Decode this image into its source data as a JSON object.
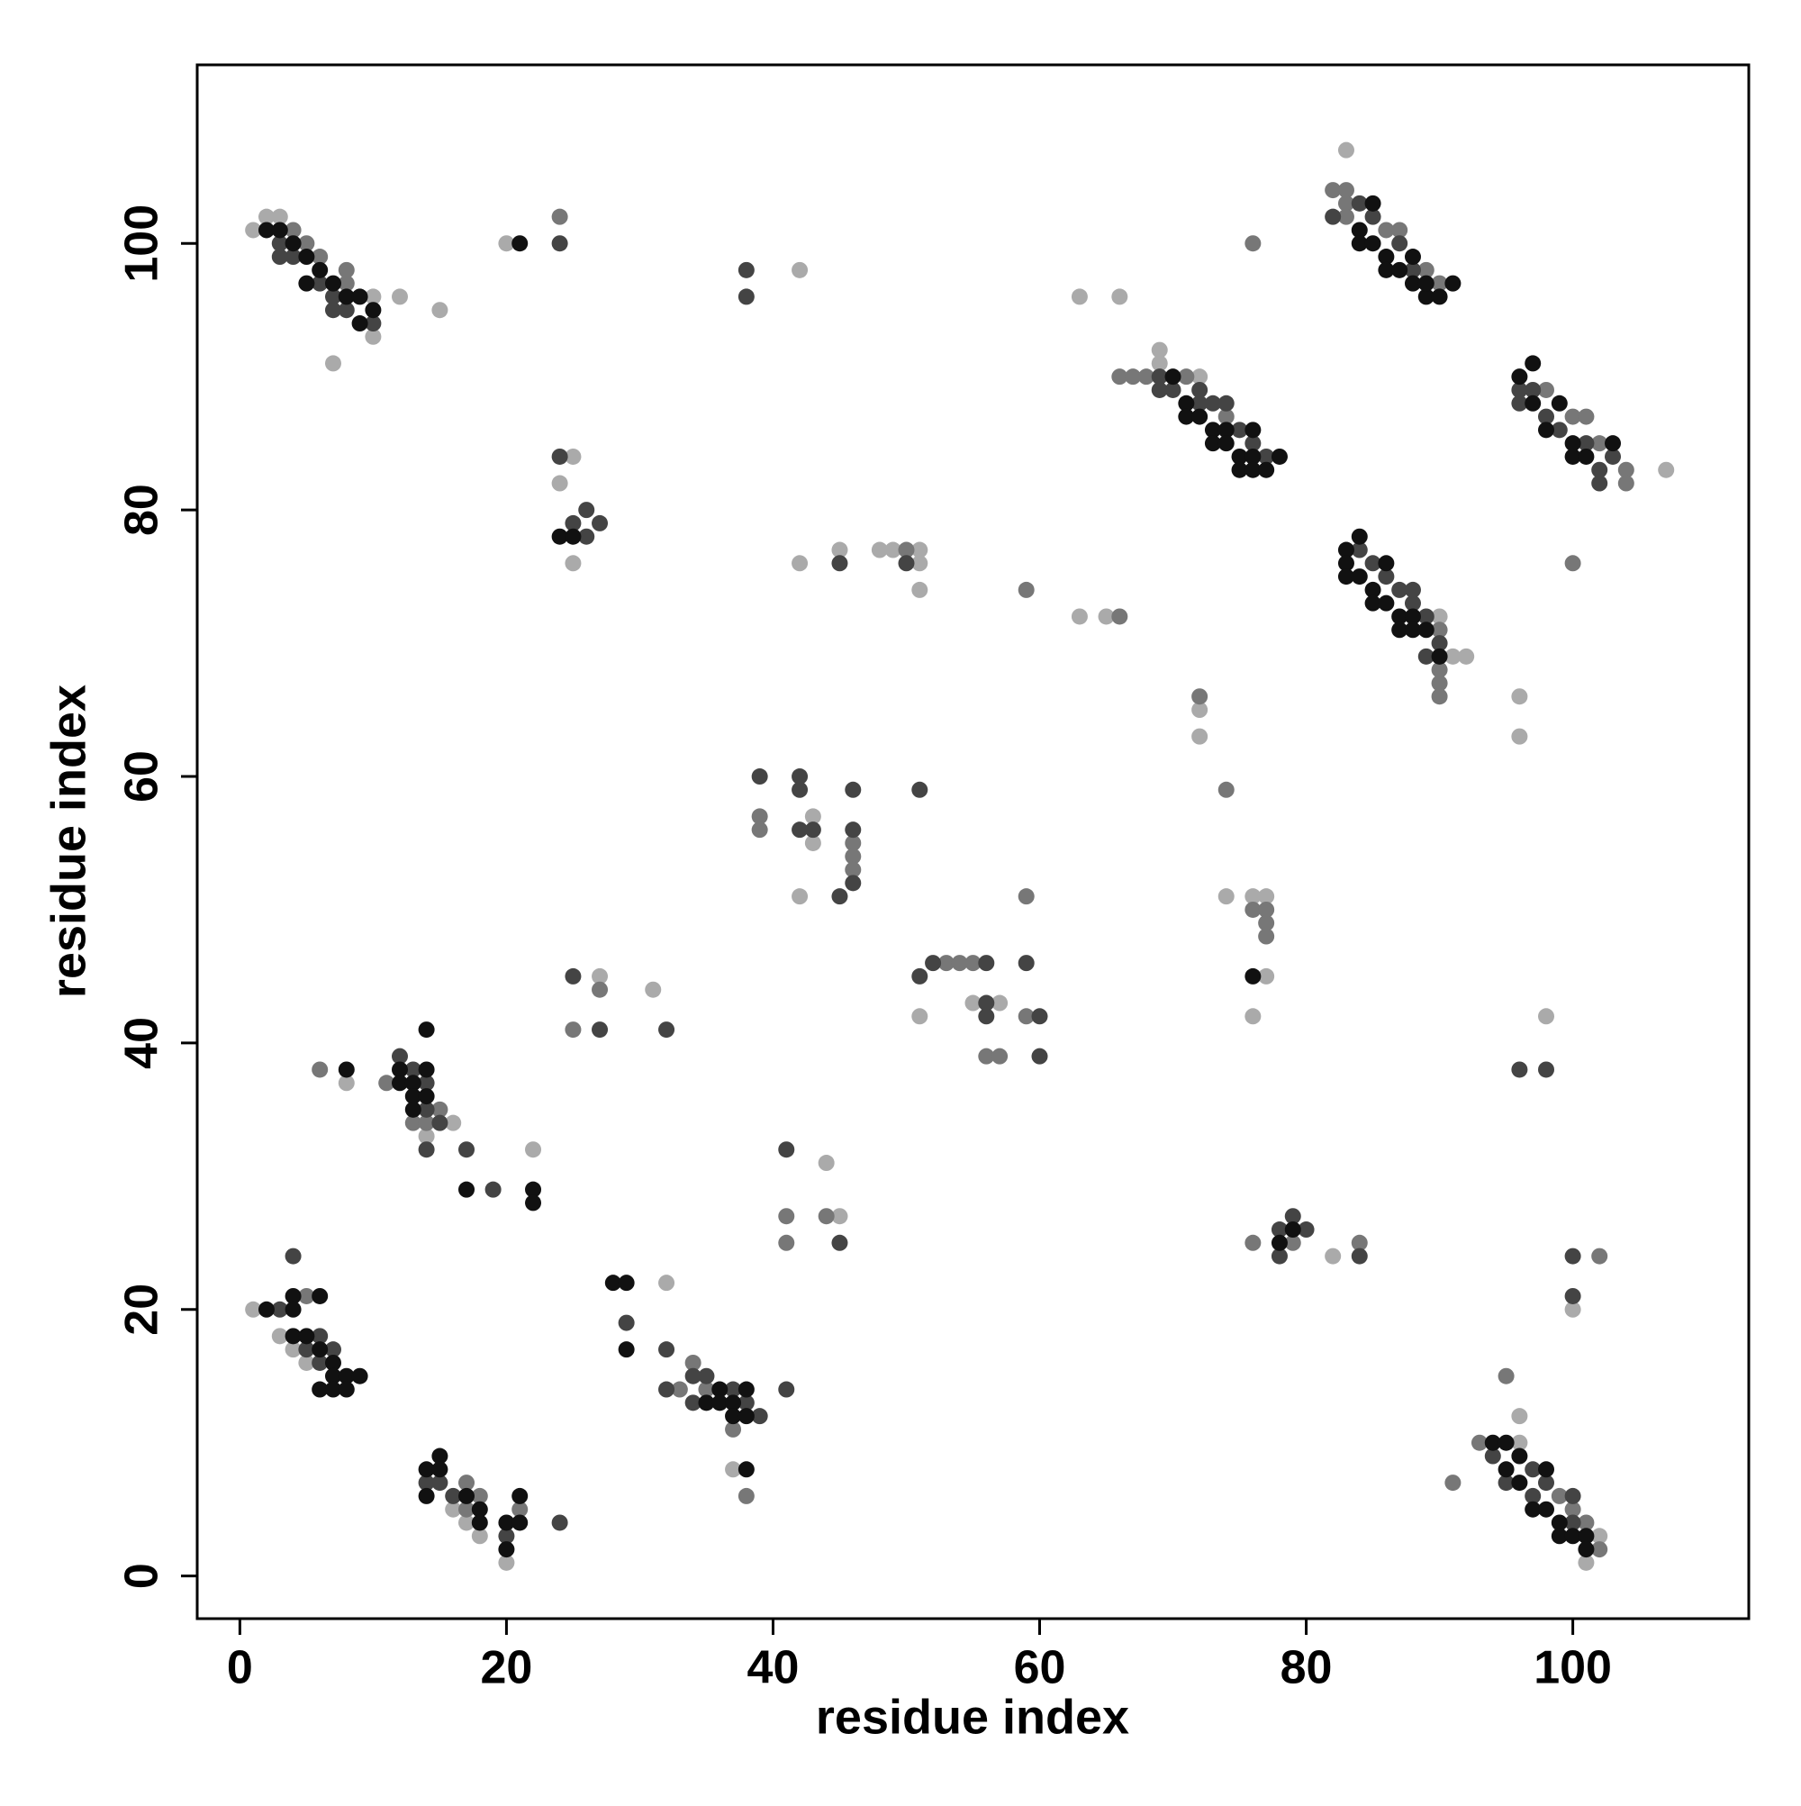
{
  "chart_data": {
    "type": "scatter",
    "xlabel": "residue index",
    "ylabel": "residue index",
    "xlim": [
      -3.2,
      113.2
    ],
    "ylim": [
      -3.2,
      113.4
    ],
    "xticks": [
      0,
      20,
      40,
      60,
      80,
      100
    ],
    "yticks": [
      0,
      20,
      40,
      60,
      80,
      100
    ],
    "series": [
      {
        "color": "#aaaaaa",
        "x": [
          1,
          2,
          3,
          10,
          12,
          15,
          7,
          10,
          20,
          42,
          63,
          66,
          25,
          24,
          25,
          42,
          45,
          48,
          49,
          51,
          51,
          51,
          63,
          65,
          69,
          69,
          72,
          83,
          107,
          90,
          91,
          92,
          72,
          72,
          96,
          96,
          43,
          43,
          42,
          74,
          76,
          77,
          77,
          76,
          55,
          57,
          51,
          27,
          31,
          98,
          8,
          14,
          16,
          22,
          44,
          45,
          82,
          100,
          1,
          3,
          4,
          5,
          32,
          37,
          16,
          17,
          18,
          20,
          96,
          96,
          101,
          102
        ],
        "values": [
          101,
          102,
          102,
          96,
          96,
          95,
          91,
          93,
          100,
          98,
          96,
          96,
          84,
          82,
          76,
          76,
          77,
          77,
          77,
          77,
          76,
          74,
          72,
          72,
          92,
          91,
          90,
          107,
          83,
          72,
          69,
          69,
          65,
          63,
          66,
          63,
          57,
          55,
          51,
          51,
          51,
          51,
          45,
          42,
          43,
          43,
          42,
          45,
          44,
          42,
          37,
          33,
          34,
          32,
          31,
          27,
          24,
          20,
          20,
          18,
          17,
          16,
          22,
          8,
          5,
          4,
          3,
          1,
          12,
          10,
          1,
          3
        ]
      },
      {
        "color": "#777777",
        "x": [
          4,
          5,
          6,
          8,
          8,
          24,
          76,
          50,
          59,
          66,
          66,
          67,
          68,
          71,
          74,
          82,
          83,
          83,
          83,
          86,
          87,
          89,
          90,
          98,
          100,
          101,
          102,
          104,
          104,
          100,
          90,
          90,
          90,
          90,
          72,
          74,
          39,
          39,
          46,
          46,
          46,
          76,
          77,
          77,
          77,
          59,
          53,
          54,
          55,
          59,
          56,
          57,
          27,
          25,
          6,
          11,
          13,
          14,
          15,
          41,
          41,
          44,
          76,
          79,
          84,
          102,
          5,
          33,
          34,
          35,
          37,
          38,
          17,
          17,
          18,
          21,
          91,
          93,
          95,
          99,
          100,
          101,
          102
        ],
        "values": [
          101,
          100,
          99,
          98,
          97,
          102,
          100,
          77,
          74,
          72,
          90,
          90,
          90,
          90,
          87,
          104,
          104,
          103,
          102,
          101,
          101,
          98,
          97,
          89,
          87,
          87,
          85,
          83,
          82,
          76,
          71,
          68,
          67,
          66,
          66,
          59,
          57,
          56,
          55,
          54,
          53,
          50,
          50,
          49,
          48,
          51,
          46,
          46,
          46,
          42,
          39,
          39,
          44,
          41,
          38,
          37,
          34,
          34,
          35,
          27,
          25,
          27,
          25,
          25,
          25,
          24,
          21,
          14,
          16,
          14,
          11,
          6,
          7,
          5,
          6,
          5,
          7,
          10,
          15,
          6,
          5,
          4,
          2
        ]
      },
      {
        "color": "#444444",
        "x": [
          3,
          4,
          6,
          7,
          7,
          8,
          10,
          3,
          24,
          38,
          38,
          24,
          25,
          26,
          26,
          27,
          45,
          50,
          69,
          69,
          70,
          72,
          72,
          73,
          74,
          75,
          76,
          77,
          82,
          84,
          85,
          87,
          88,
          96,
          96,
          97,
          98,
          99,
          101,
          102,
          102,
          103,
          84,
          85,
          86,
          87,
          88,
          88,
          89,
          89,
          90,
          39,
          42,
          42,
          42,
          43,
          46,
          46,
          46,
          45,
          51,
          51,
          52,
          56,
          56,
          56,
          59,
          60,
          60,
          25,
          27,
          32,
          96,
          98,
          12,
          13,
          14,
          14,
          14,
          15,
          17,
          19,
          41,
          45,
          78,
          78,
          79,
          80,
          84,
          100,
          100,
          3,
          4,
          5,
          6,
          6,
          7,
          29,
          32,
          32,
          34,
          34,
          35,
          37,
          38,
          39,
          41,
          14,
          15,
          16,
          20,
          24,
          94,
          95,
          97,
          97,
          98,
          100,
          100
        ],
        "values": [
          100,
          99,
          97,
          96,
          95,
          95,
          94,
          99,
          100,
          98,
          96,
          84,
          79,
          80,
          78,
          79,
          76,
          76,
          90,
          89,
          89,
          89,
          88,
          88,
          88,
          86,
          85,
          84,
          102,
          103,
          102,
          100,
          98,
          89,
          88,
          89,
          87,
          86,
          85,
          83,
          82,
          84,
          77,
          76,
          75,
          74,
          74,
          73,
          72,
          69,
          70,
          60,
          60,
          59,
          56,
          56,
          59,
          56,
          52,
          51,
          59,
          45,
          46,
          46,
          43,
          42,
          46,
          42,
          39,
          45,
          41,
          41,
          38,
          38,
          39,
          38,
          37,
          35,
          32,
          34,
          32,
          29,
          32,
          25,
          26,
          24,
          27,
          26,
          24,
          24,
          21,
          20,
          24,
          17,
          18,
          16,
          17,
          19,
          17,
          14,
          15,
          13,
          15,
          14,
          13,
          12,
          14,
          7,
          7,
          6,
          3,
          4,
          9,
          7,
          8,
          6,
          7,
          6,
          4
        ]
      },
      {
        "color": "#111111",
        "x": [
          2,
          3,
          4,
          5,
          5,
          6,
          7,
          8,
          9,
          9,
          10,
          21,
          24,
          25,
          70,
          71,
          71,
          72,
          73,
          73,
          74,
          74,
          75,
          75,
          76,
          76,
          76,
          77,
          78,
          84,
          84,
          85,
          85,
          86,
          86,
          87,
          88,
          88,
          89,
          89,
          90,
          91,
          96,
          97,
          97,
          98,
          99,
          100,
          100,
          101,
          103,
          83,
          83,
          83,
          84,
          84,
          85,
          85,
          86,
          86,
          87,
          87,
          88,
          88,
          89,
          90,
          76,
          8,
          12,
          12,
          13,
          13,
          13,
          14,
          14,
          14,
          17,
          22,
          22,
          78,
          79,
          2,
          4,
          4,
          6,
          4,
          5,
          6,
          6,
          7,
          7,
          7,
          8,
          8,
          9,
          28,
          29,
          29,
          35,
          36,
          36,
          37,
          37,
          38,
          38,
          38,
          14,
          14,
          15,
          15,
          17,
          18,
          18,
          20,
          20,
          21,
          21,
          94,
          95,
          95,
          96,
          96,
          97,
          98,
          98,
          99,
          99,
          100,
          101,
          101
        ],
        "values": [
          101,
          101,
          100,
          99,
          97,
          98,
          97,
          96,
          96,
          94,
          95,
          100,
          78,
          78,
          90,
          88,
          87,
          87,
          86,
          85,
          86,
          85,
          84,
          83,
          86,
          84,
          83,
          83,
          84,
          101,
          100,
          103,
          100,
          99,
          98,
          98,
          99,
          97,
          96,
          97,
          96,
          97,
          90,
          91,
          88,
          86,
          88,
          85,
          84,
          84,
          85,
          77,
          76,
          75,
          78,
          75,
          74,
          73,
          76,
          73,
          72,
          71,
          72,
          71,
          71,
          69,
          45,
          38,
          38,
          37,
          37,
          36,
          35,
          41,
          38,
          36,
          29,
          29,
          28,
          25,
          26,
          20,
          21,
          20,
          21,
          18,
          18,
          17,
          14,
          16,
          15,
          14,
          15,
          14,
          15,
          22,
          22,
          17,
          13,
          14,
          13,
          13,
          12,
          14,
          12,
          8,
          8,
          6,
          9,
          8,
          6,
          5,
          4,
          4,
          2,
          6,
          4,
          10,
          10,
          8,
          9,
          7,
          5,
          8,
          5,
          4,
          3,
          3,
          3,
          2
        ]
      }
    ]
  }
}
